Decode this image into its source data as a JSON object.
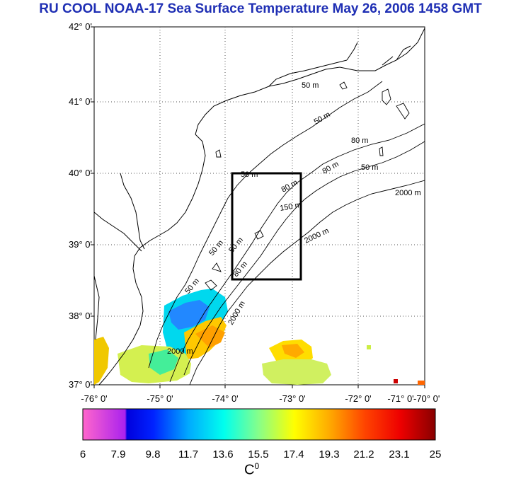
{
  "title": "RU COOL  NOAA-17 Sea Surface Temperature May 26, 2006 1458 GMT",
  "lat_labels": [
    "42° 0'",
    "41° 0'",
    "40° 0'",
    "39° 0'",
    "38° 0'",
    "37° 0'"
  ],
  "lon_labels": [
    "-76° 0'",
    "-75° 0'",
    "-74° 0'",
    "-73° 0'",
    "-72° 0'",
    "-71° 0'",
    "-70° 0'"
  ],
  "colorbar": {
    "ticks": [
      "6",
      "7.9",
      "9.8",
      "11.7",
      "13.6",
      "15.5",
      "17.4",
      "19.3",
      "21.2",
      "23.1",
      "25"
    ],
    "unit": "C",
    "unit_sup": "0"
  },
  "contour_labels": [
    "50 m",
    "50 m",
    "50 m",
    "50 m",
    "80 m",
    "80 m",
    "50 m",
    "80 m",
    "150 m",
    "2000 m",
    "2000 m",
    "2000 m",
    "50 m",
    "50 m",
    "80 m",
    "2000 m"
  ],
  "colors": {
    "title": "#1f2fb4",
    "box": "#000000"
  }
}
